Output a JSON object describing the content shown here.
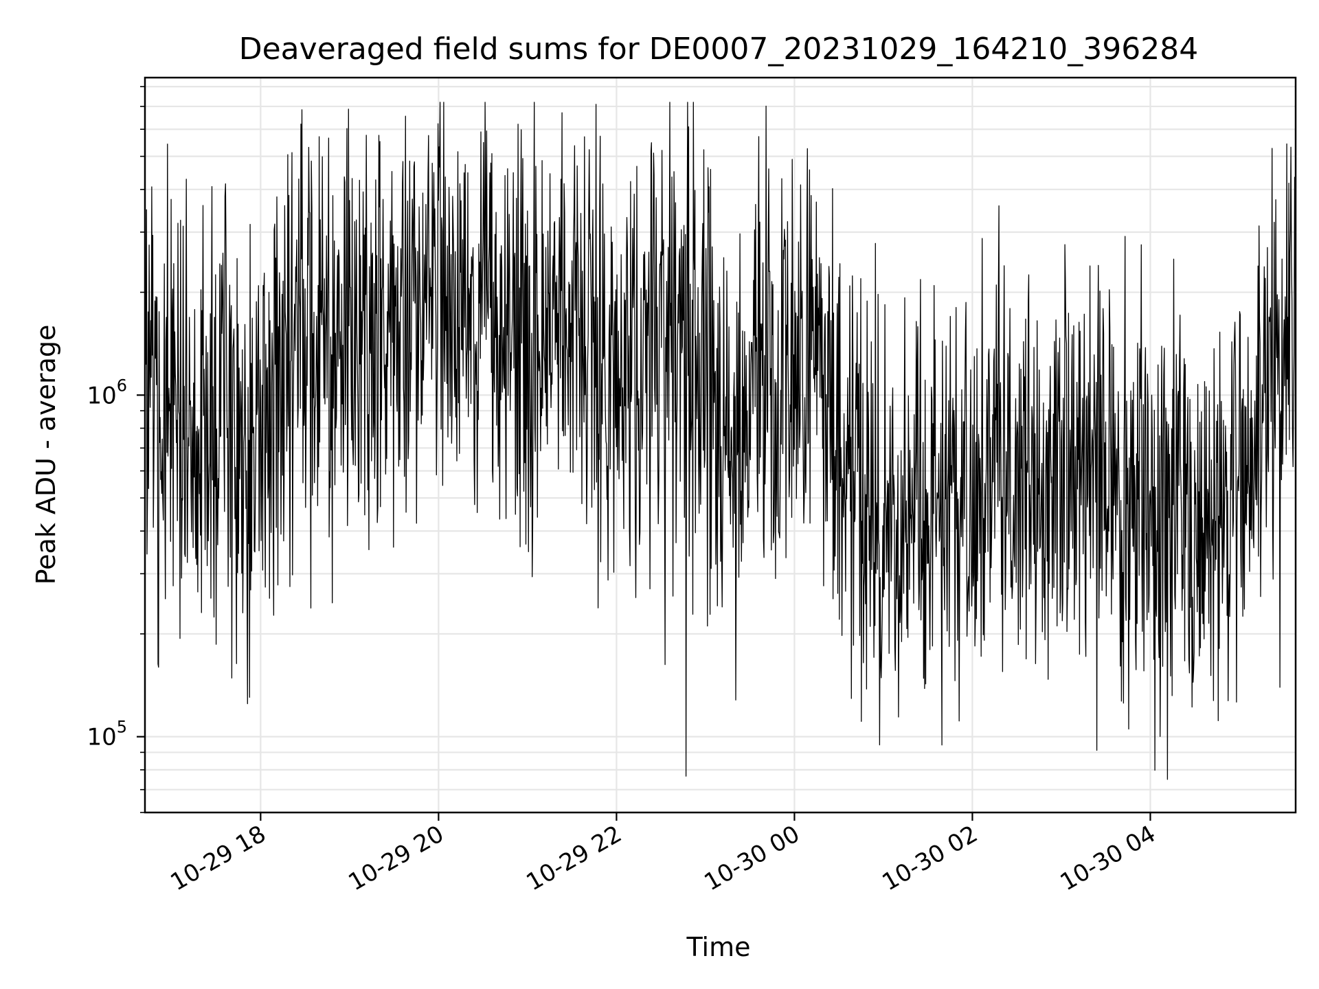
{
  "chart_data": {
    "type": "line",
    "title": "Deaveraged field sums for DE0007_20231029_164210_396284",
    "xlabel": "Time",
    "ylabel": "Peak ADU - average",
    "y_scale": "log",
    "ylim": [
      60000,
      8500000
    ],
    "xlim": [
      "2023-10-29 16:42",
      "2023-10-30 05:38"
    ],
    "grid": true,
    "x_ticks": [
      {
        "t": "2023-10-29 18:00",
        "label": "10-29 18"
      },
      {
        "t": "2023-10-29 20:00",
        "label": "10-29 20"
      },
      {
        "t": "2023-10-29 22:00",
        "label": "10-29 22"
      },
      {
        "t": "2023-10-30 00:00",
        "label": "10-30 00"
      },
      {
        "t": "2023-10-30 02:00",
        "label": "10-30 02"
      },
      {
        "t": "2023-10-30 04:00",
        "label": "10-30 04"
      }
    ],
    "y_ticks": [
      {
        "value": 100000,
        "base": "10",
        "exp": "5"
      },
      {
        "value": 1000000,
        "base": "10",
        "exp": "6"
      }
    ],
    "series": [
      {
        "color": "#000000",
        "x": [
          "2023-10-29 16:42",
          "2023-10-29 16:52",
          "2023-10-29 17:02",
          "2023-10-29 17:12",
          "2023-10-29 17:22",
          "2023-10-29 17:32",
          "2023-10-29 17:42",
          "2023-10-29 17:52",
          "2023-10-29 18:02",
          "2023-10-29 18:12",
          "2023-10-29 18:22",
          "2023-10-29 18:32",
          "2023-10-29 18:42",
          "2023-10-29 18:52",
          "2023-10-29 19:02",
          "2023-10-29 19:12",
          "2023-10-29 19:22",
          "2023-10-29 19:32",
          "2023-10-29 19:42",
          "2023-10-29 19:52",
          "2023-10-29 20:02",
          "2023-10-29 20:12",
          "2023-10-29 20:22",
          "2023-10-29 20:32",
          "2023-10-29 20:42",
          "2023-10-29 20:52",
          "2023-10-29 21:02",
          "2023-10-29 21:12",
          "2023-10-29 21:22",
          "2023-10-29 21:32",
          "2023-10-29 21:42",
          "2023-10-29 21:52",
          "2023-10-29 22:02",
          "2023-10-29 22:12",
          "2023-10-29 22:22",
          "2023-10-29 22:32",
          "2023-10-29 22:42",
          "2023-10-29 22:52",
          "2023-10-29 23:02",
          "2023-10-29 23:12",
          "2023-10-29 23:22",
          "2023-10-29 23:32",
          "2023-10-29 23:42",
          "2023-10-29 23:52",
          "2023-10-30 00:02",
          "2023-10-30 00:12",
          "2023-10-30 00:22",
          "2023-10-30 00:32",
          "2023-10-30 00:42",
          "2023-10-30 00:52",
          "2023-10-30 01:02",
          "2023-10-30 01:12",
          "2023-10-30 01:22",
          "2023-10-30 01:32",
          "2023-10-30 01:42",
          "2023-10-30 01:52",
          "2023-10-30 02:02",
          "2023-10-30 02:12",
          "2023-10-30 02:22",
          "2023-10-30 02:32",
          "2023-10-30 02:42",
          "2023-10-30 02:52",
          "2023-10-30 03:02",
          "2023-10-30 03:12",
          "2023-10-30 03:22",
          "2023-10-30 03:32",
          "2023-10-30 03:42",
          "2023-10-30 03:52",
          "2023-10-30 04:02",
          "2023-10-30 04:12",
          "2023-10-30 04:22",
          "2023-10-30 04:32",
          "2023-10-30 04:42",
          "2023-10-30 04:52",
          "2023-10-30 05:02",
          "2023-10-30 05:12",
          "2023-10-30 05:22",
          "2023-10-30 05:32"
        ],
        "values": [
          1500000,
          820000,
          1300000,
          700000,
          700000,
          900000,
          850000,
          700000,
          800000,
          950000,
          1100000,
          1250000,
          1350000,
          1400000,
          1450000,
          1500000,
          1550000,
          1500000,
          1800000,
          1900000,
          2000000,
          1900000,
          1800000,
          1750000,
          1650000,
          1600000,
          1500000,
          1450000,
          1400000,
          1300000,
          1250000,
          1150000,
          1100000,
          1300000,
          1450000,
          1550000,
          1350000,
          1300000,
          1000000,
          700000,
          800000,
          1100000,
          1200000,
          1150000,
          1050000,
          950000,
          850000,
          750000,
          600000,
          450000,
          380000,
          350000,
          420000,
          480000,
          500000,
          530000,
          580000,
          620000,
          600000,
          650000,
          620000,
          640000,
          660000,
          640000,
          600000,
          580000,
          560000,
          520000,
          500000,
          480000,
          470000,
          450000,
          440000,
          450000,
          500000,
          700000,
          1400000,
          1600000
        ]
      }
    ]
  }
}
